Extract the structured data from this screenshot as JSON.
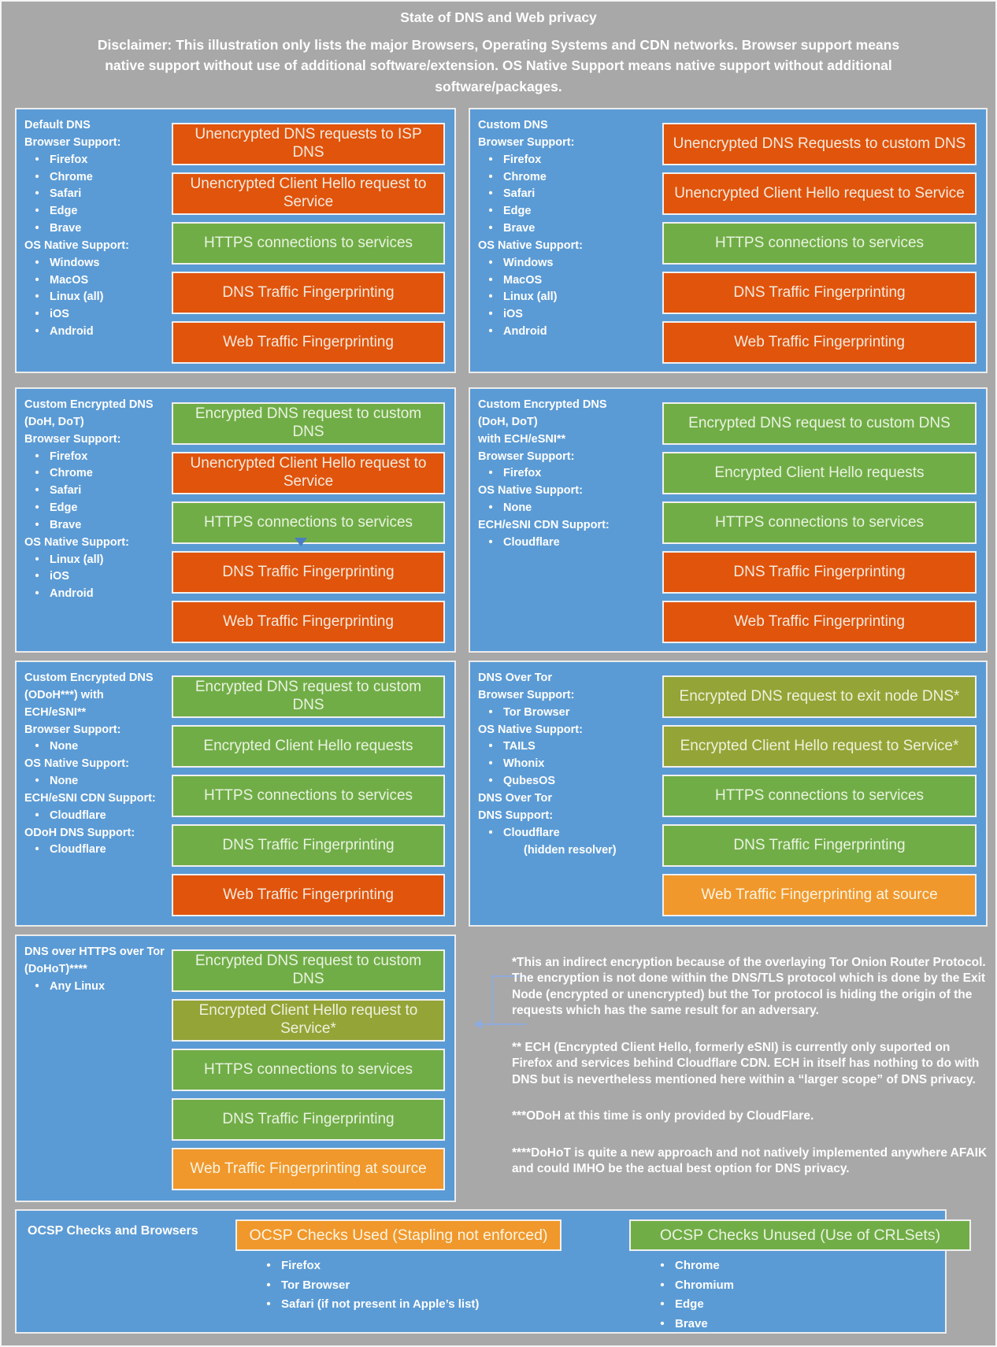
{
  "header": {
    "title": "State of DNS and Web privacy",
    "disclaimer": "Disclaimer: This illustration only lists the major Browsers, Operating Systems and CDN networks. Browser support means native support without use of additional software/extension. OS Native Support means native support without additional software/packages."
  },
  "colors": {
    "background_gray": "#a8a8a8",
    "panel_blue": "#5b9bd5",
    "bad_orange": "#e0540c",
    "good_green": "#71ad47",
    "partial_olive": "#94a437",
    "warn_amber": "#f0982b"
  },
  "panels": [
    {
      "id": "default-dns",
      "title_lines": [
        "Default DNS"
      ],
      "sections": [
        {
          "heading_lines": [
            "Browser Support:"
          ],
          "items": [
            "Firefox",
            "Chrome",
            "Safari",
            "Edge",
            "Brave"
          ]
        },
        {
          "heading_lines": [
            "OS Native Support:"
          ],
          "items": [
            "Windows",
            "MacOS",
            "Linux (all)",
            "iOS",
            "Android"
          ]
        }
      ],
      "bars": [
        {
          "text": "Unencrypted DNS requests to ISP DNS",
          "color": "orange"
        },
        {
          "text": "Unencrypted Client Hello request to Service",
          "color": "orange"
        },
        {
          "text": "HTTPS connections to services",
          "color": "green"
        },
        {
          "text": "DNS Traffic Fingerprinting",
          "color": "orange"
        },
        {
          "text": "Web Traffic Fingerprinting",
          "color": "orange"
        }
      ]
    },
    {
      "id": "custom-dns",
      "title_lines": [
        "Custom DNS"
      ],
      "sections": [
        {
          "heading_lines": [
            "Browser Support:"
          ],
          "items": [
            "Firefox",
            "Chrome",
            "Safari",
            "Edge",
            "Brave"
          ]
        },
        {
          "heading_lines": [
            "OS Native Support:"
          ],
          "items": [
            "Windows",
            "MacOS",
            "Linux (all)",
            "iOS",
            "Android"
          ]
        }
      ],
      "bars": [
        {
          "text": "Unencrypted DNS Requests to custom DNS",
          "color": "orange"
        },
        {
          "text": "Unencrypted Client Hello request to Service",
          "color": "orange"
        },
        {
          "text": "HTTPS connections to services",
          "color": "green"
        },
        {
          "text": "DNS Traffic Fingerprinting",
          "color": "orange"
        },
        {
          "text": "Web Traffic Fingerprinting",
          "color": "orange"
        }
      ]
    },
    {
      "id": "custom-encrypted-dns-doh-dot",
      "title_lines": [
        "Custom Encrypted DNS",
        "(DoH, DoT)"
      ],
      "sections": [
        {
          "heading_lines": [
            "Browser Support:"
          ],
          "items": [
            "Firefox",
            "Chrome",
            "Safari",
            "Edge",
            "Brave"
          ]
        },
        {
          "heading_lines": [
            "OS Native Support:"
          ],
          "items": [
            "Linux (all)",
            "iOS",
            "Android"
          ]
        }
      ],
      "bars": [
        {
          "text": "Encrypted DNS request to custom DNS",
          "color": "green"
        },
        {
          "text": "Unencrypted Client Hello request to Service",
          "color": "orange"
        },
        {
          "text": "HTTPS connections to services",
          "color": "green"
        },
        {
          "text": "DNS Traffic Fingerprinting",
          "color": "orange"
        },
        {
          "text": "Web Traffic Fingerprinting",
          "color": "orange"
        }
      ]
    },
    {
      "id": "custom-encrypted-dns-ech",
      "title_lines": [
        "Custom Encrypted DNS",
        "(DoH, DoT)",
        "with ECH/eSNI**"
      ],
      "sections": [
        {
          "heading_lines": [
            "Browser Support:"
          ],
          "items": [
            "Firefox"
          ]
        },
        {
          "heading_lines": [
            "OS Native Support:"
          ],
          "items": [
            "None"
          ]
        },
        {
          "heading_lines": [
            "ECH/eSNI CDN Support:"
          ],
          "items": [
            "Cloudflare"
          ]
        }
      ],
      "bars": [
        {
          "text": "Encrypted DNS request to custom DNS",
          "color": "green"
        },
        {
          "text": "Encrypted Client Hello requests",
          "color": "green"
        },
        {
          "text": "HTTPS connections to services",
          "color": "green"
        },
        {
          "text": "DNS Traffic Fingerprinting",
          "color": "orange"
        },
        {
          "text": "Web Traffic Fingerprinting",
          "color": "orange"
        }
      ]
    },
    {
      "id": "custom-encrypted-dns-odoh",
      "title_lines": [
        "Custom Encrypted DNS",
        "(ODoH***) with",
        "ECH/eSNI**"
      ],
      "sections": [
        {
          "heading_lines": [
            "Browser Support:"
          ],
          "items": [
            "None"
          ]
        },
        {
          "heading_lines": [
            "OS Native Support:"
          ],
          "items": [
            "None"
          ]
        },
        {
          "heading_lines": [
            "ECH/eSNI CDN Support:"
          ],
          "items": [
            "Cloudflare"
          ]
        },
        {
          "heading_lines": [
            "ODoH DNS Support:"
          ],
          "items": [
            "Cloudflare"
          ]
        }
      ],
      "bars": [
        {
          "text": "Encrypted DNS request to custom DNS",
          "color": "green"
        },
        {
          "text": "Encrypted Client Hello requests",
          "color": "green"
        },
        {
          "text": "HTTPS connections to services",
          "color": "green"
        },
        {
          "text": "DNS Traffic Fingerprinting",
          "color": "green"
        },
        {
          "text": "Web Traffic Fingerprinting",
          "color": "orange"
        }
      ]
    },
    {
      "id": "dns-over-tor",
      "title_lines": [
        "DNS Over Tor"
      ],
      "sections": [
        {
          "heading_lines": [
            "Browser Support:"
          ],
          "items": [
            "Tor Browser"
          ]
        },
        {
          "heading_lines": [
            "OS Native Support:"
          ],
          "items": [
            "TAILS",
            "Whonix",
            "QubesOS"
          ]
        },
        {
          "heading_lines": [
            "DNS Over Tor",
            "DNS Support:"
          ],
          "items": [
            "Cloudflare"
          ],
          "trailing": "(hidden resolver)"
        }
      ],
      "bars": [
        {
          "text": "Encrypted DNS request to exit node DNS*",
          "color": "olive"
        },
        {
          "text": "Encrypted Client Hello request to Service*",
          "color": "olive"
        },
        {
          "text": "HTTPS connections to services",
          "color": "green"
        },
        {
          "text": "DNS Traffic Fingerprinting",
          "color": "green"
        },
        {
          "text": "Web Traffic Fingerprinting at source",
          "color": "amber"
        }
      ]
    },
    {
      "id": "dohot",
      "title_lines": [
        "DNS over HTTPS over Tor",
        "(DoHoT)****"
      ],
      "sections": [
        {
          "heading_lines": [],
          "items": [
            "Any Linux"
          ]
        }
      ],
      "bars": [
        {
          "text": "Encrypted DNS request to custom DNS",
          "color": "green"
        },
        {
          "text": "Encrypted Client Hello request to Service*",
          "color": "olive"
        },
        {
          "text": "HTTPS connections to services",
          "color": "green"
        },
        {
          "text": "DNS Traffic Fingerprinting",
          "color": "green"
        },
        {
          "text": "Web Traffic Fingerprinting at source",
          "color": "amber"
        }
      ]
    }
  ],
  "notes": [
    "*This an indirect encryption because of the overlaying Tor Onion Router Protocol. The encryption is not done within the DNS/TLS protocol which is done by the Exit Node (encrypted or unencrypted) but the Tor protocol is hiding the origin of the requests which has the same result for an adversary.",
    "** ECH (Encrypted Client Hello, formerly eSNI) is currently only suported on Firefox and services behind Cloudflare CDN. ECH in itself has nothing to do with DNS but is nevertheless mentioned here within a “larger scope” of DNS privacy.",
    "***ODoH at this time is only provided by CloudFlare.",
    "****DoHoT is quite a new approach and not natively implemented anywhere AFAIK and could IMHO be the actual best option for DNS privacy."
  ],
  "ocsp": {
    "label": "OCSP Checks and Browsers",
    "columns": [
      {
        "header": "OCSP Checks Used (Stapling not enforced)",
        "color": "amber",
        "items": [
          "Firefox",
          "Tor Browser",
          "Safari (if not present in Apple’s list)"
        ]
      },
      {
        "header": "OCSP Checks Unused (Use of CRLSets)",
        "color": "green",
        "items": [
          "Chrome",
          "Chromium",
          "Edge",
          "Brave"
        ]
      }
    ]
  }
}
